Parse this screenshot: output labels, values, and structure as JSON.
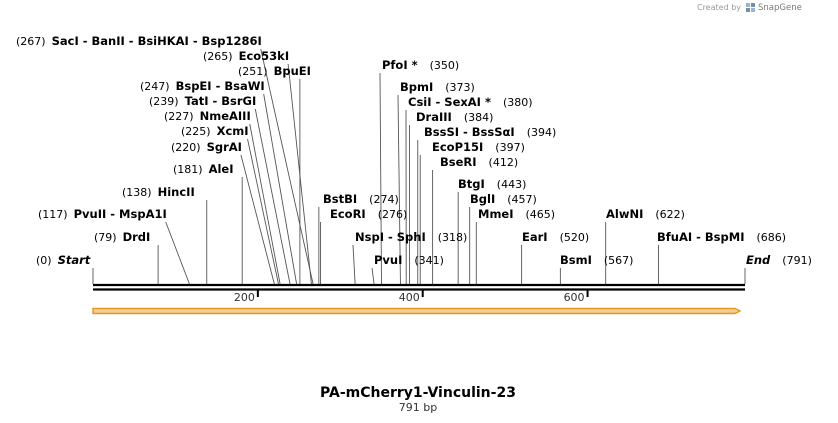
{
  "credit": {
    "prefix": "Created by",
    "brand": "SnapGene"
  },
  "plasmid": {
    "name": "PA-mCherry1-Vinculin-23",
    "length_label": "791 bp",
    "length": 791
  },
  "ruler": {
    "ticks": [
      200,
      400,
      600
    ]
  },
  "sites": [
    {
      "pos": 0,
      "text": "Start",
      "italic": true
    },
    {
      "pos": 79,
      "text": "DrdI"
    },
    {
      "pos": 117,
      "text": "PvuII  -  MspA1I"
    },
    {
      "pos": 138,
      "text": "HincII"
    },
    {
      "pos": 181,
      "text": "AleI"
    },
    {
      "pos": 220,
      "text": "SgrAI"
    },
    {
      "pos": 225,
      "text": "XcmI"
    },
    {
      "pos": 227,
      "text": "NmeAIII"
    },
    {
      "pos": 239,
      "text": "TatI  -  BsrGI"
    },
    {
      "pos": 247,
      "text": "BspEI  -  BsaWI"
    },
    {
      "pos": 251,
      "text": "BpuEI"
    },
    {
      "pos": 265,
      "text": "Eco53kI"
    },
    {
      "pos": 267,
      "text": "SacI  -  BanII  -  BsiHKAI  -  Bsp1286I"
    },
    {
      "pos": 274,
      "text": "BstBI"
    },
    {
      "pos": 276,
      "text": "EcoRI"
    },
    {
      "pos": 318,
      "text": "NspI  -  SphI"
    },
    {
      "pos": 341,
      "text": "PvuI"
    },
    {
      "pos": 350,
      "text": "PfoI *"
    },
    {
      "pos": 373,
      "text": "BpmI"
    },
    {
      "pos": 380,
      "text": "CsiI  -  SexAI *"
    },
    {
      "pos": 384,
      "text": "DraIII"
    },
    {
      "pos": 394,
      "text": "BssSI  -  BssSαI"
    },
    {
      "pos": 397,
      "text": "EcoP15I"
    },
    {
      "pos": 412,
      "text": "BseRI"
    },
    {
      "pos": 443,
      "text": "BtgI"
    },
    {
      "pos": 457,
      "text": "BglI"
    },
    {
      "pos": 465,
      "text": "MmeI"
    },
    {
      "pos": 520,
      "text": "EarI"
    },
    {
      "pos": 567,
      "text": "BsmI"
    },
    {
      "pos": 622,
      "text": "AlwNI"
    },
    {
      "pos": 686,
      "text": "BfuAI  -  BspMI"
    },
    {
      "pos": 791,
      "text": "End",
      "italic": true
    }
  ],
  "colors": {
    "feature_fill": "#f2ce9a",
    "feature_stroke": "#e39a1a",
    "backbone": "#000000",
    "leader": "#555555"
  }
}
